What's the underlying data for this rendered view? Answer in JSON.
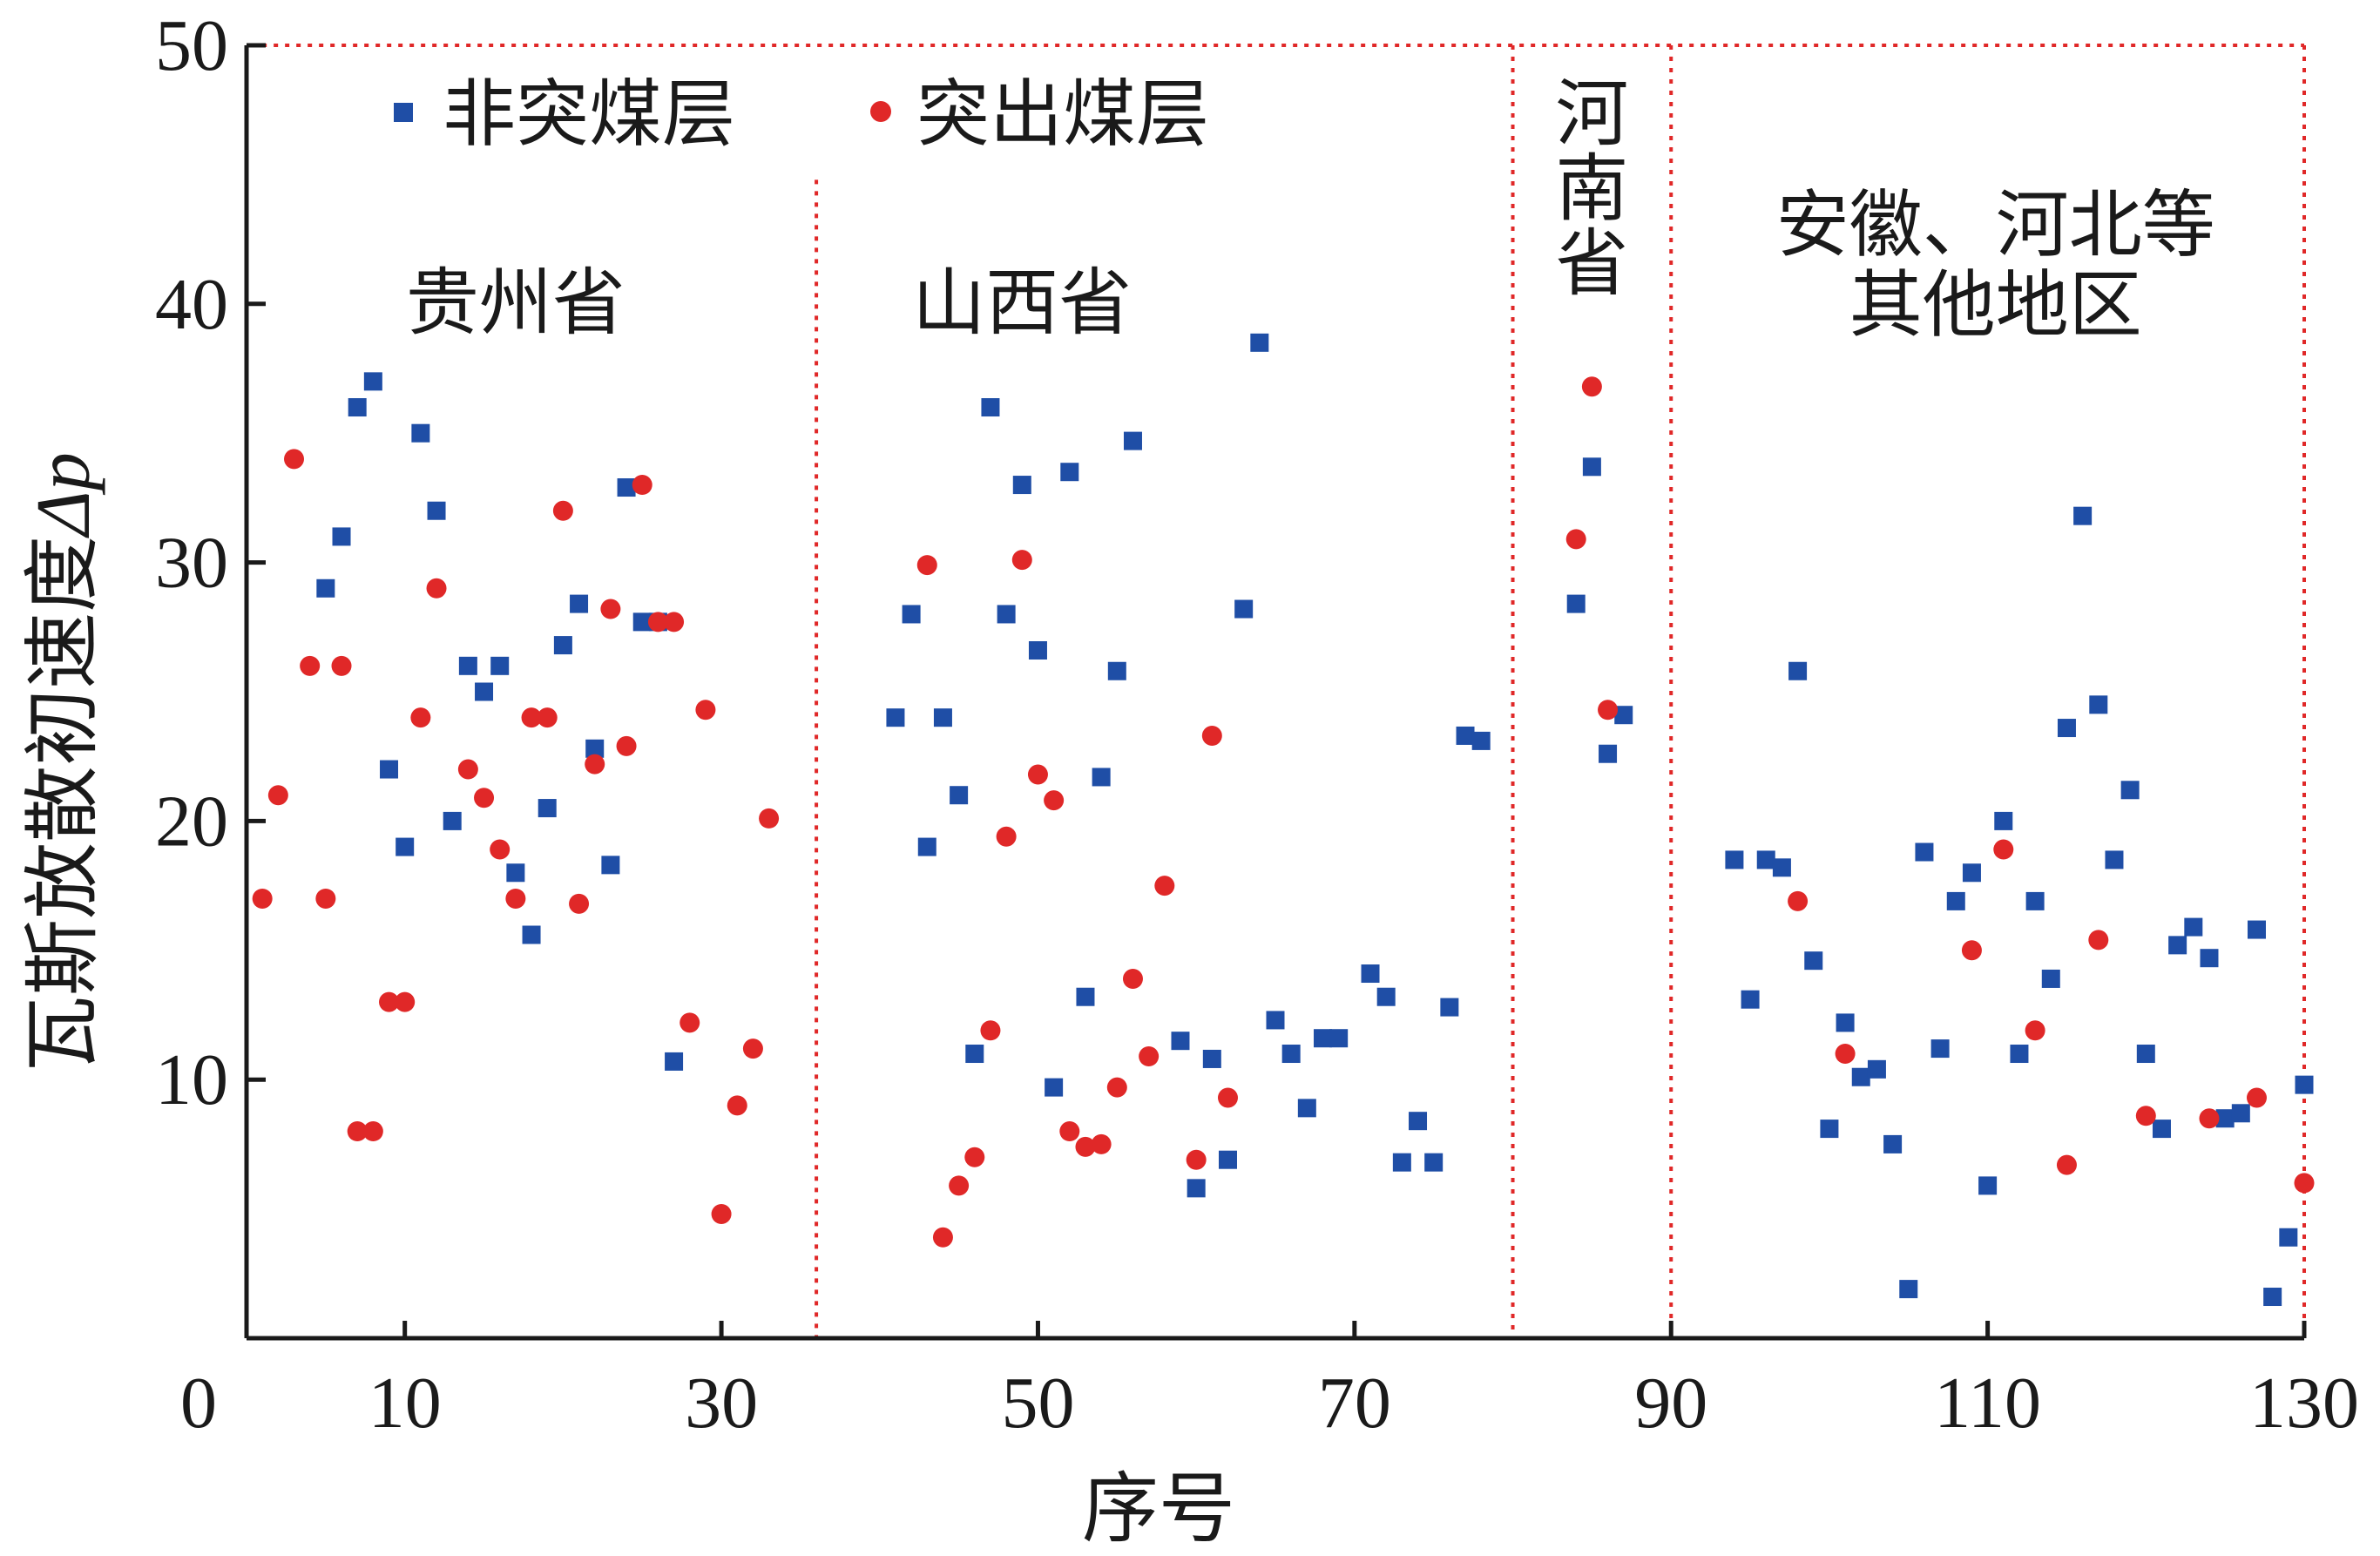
{
  "chart_data": {
    "type": "scatter",
    "xlabel": "序号",
    "ylabel_main": "瓦斯放散初速度",
    "ylabel_symbol": "Δp",
    "xlim": [
      0,
      130
    ],
    "ylim": [
      0,
      50
    ],
    "x_ticks": [
      0,
      10,
      30,
      50,
      70,
      90,
      110,
      130
    ],
    "y_ticks": [
      10,
      20,
      30,
      40,
      50
    ],
    "grid": false,
    "legend": {
      "placement": "top-left",
      "entries": [
        "非突煤层",
        "突出煤层"
      ]
    },
    "region_dividers_x": [
      36,
      80,
      90,
      130
    ],
    "regions": [
      {
        "lines": [
          "贵州省"
        ],
        "x_center": 17,
        "y_top": 41.5
      },
      {
        "lines": [
          "山西省"
        ],
        "x_center": 49,
        "y_top": 41.5
      },
      {
        "lines": [
          "河",
          "南",
          "省"
        ],
        "x_center": 85,
        "y_top": 48.8
      },
      {
        "lines": [
          "安徽、河北等",
          "其他地区"
        ],
        "x_center": 110.5,
        "y_top": 44.5
      }
    ],
    "series": [
      {
        "name": "非突煤层",
        "marker": "square",
        "color": "#1f4ea6",
        "points": [
          [
            5,
            29
          ],
          [
            6,
            31
          ],
          [
            7,
            36
          ],
          [
            8,
            37
          ],
          [
            9,
            22
          ],
          [
            10,
            19
          ],
          [
            11,
            35
          ],
          [
            12,
            32
          ],
          [
            13,
            20
          ],
          [
            14,
            26
          ],
          [
            15,
            25
          ],
          [
            16,
            26
          ],
          [
            17,
            18
          ],
          [
            18,
            15.6
          ],
          [
            19,
            20.5
          ],
          [
            20,
            26.8
          ],
          [
            21,
            28.4
          ],
          [
            22,
            22.8
          ],
          [
            23,
            18.3
          ],
          [
            24,
            32.9
          ],
          [
            25,
            27.7
          ],
          [
            26,
            27.7
          ],
          [
            27,
            10.7
          ],
          [
            41,
            24
          ],
          [
            42,
            28
          ],
          [
            43,
            19
          ],
          [
            44,
            24
          ],
          [
            45,
            21
          ],
          [
            46,
            11
          ],
          [
            47,
            36
          ],
          [
            48,
            28
          ],
          [
            49,
            33
          ],
          [
            50,
            26.6
          ],
          [
            51,
            9.7
          ],
          [
            52,
            33.5
          ],
          [
            53,
            13.2
          ],
          [
            54,
            21.7
          ],
          [
            55,
            25.8
          ],
          [
            56,
            34.7
          ],
          [
            59,
            11.5
          ],
          [
            60,
            5.8
          ],
          [
            61,
            10.8
          ],
          [
            62,
            6.9
          ],
          [
            63,
            28.2
          ],
          [
            64,
            38.5
          ],
          [
            65,
            12.3
          ],
          [
            66,
            11
          ],
          [
            67,
            8.9
          ],
          [
            68,
            11.6
          ],
          [
            69,
            11.6
          ],
          [
            71,
            14.1
          ],
          [
            72,
            13.2
          ],
          [
            73,
            6.8
          ],
          [
            74,
            8.4
          ],
          [
            75,
            6.8
          ],
          [
            76,
            12.8
          ],
          [
            77,
            23.3
          ],
          [
            78,
            23.1
          ],
          [
            84,
            28.4
          ],
          [
            85,
            33.7
          ],
          [
            86,
            22.6
          ],
          [
            87,
            24.1
          ],
          [
            94,
            18.5
          ],
          [
            95,
            13.1
          ],
          [
            96,
            18.5
          ],
          [
            97,
            18.2
          ],
          [
            98,
            25.8
          ],
          [
            99,
            14.6
          ],
          [
            100,
            8.1
          ],
          [
            101,
            12.2
          ],
          [
            102,
            10.1
          ],
          [
            103,
            10.4
          ],
          [
            104,
            7.5
          ],
          [
            105,
            1.9
          ],
          [
            106,
            18.8
          ],
          [
            107,
            11.2
          ],
          [
            108,
            16.9
          ],
          [
            109,
            18
          ],
          [
            110,
            5.9
          ],
          [
            111,
            20
          ],
          [
            112,
            11
          ],
          [
            113,
            16.9
          ],
          [
            114,
            13.9
          ],
          [
            115,
            23.6
          ],
          [
            116,
            31.8
          ],
          [
            117,
            24.5
          ],
          [
            118,
            18.5
          ],
          [
            119,
            21.2
          ],
          [
            120,
            11
          ],
          [
            121,
            8.1
          ],
          [
            122,
            15.2
          ],
          [
            123,
            15.9
          ],
          [
            124,
            14.7
          ],
          [
            125,
            8.5
          ],
          [
            126,
            8.7
          ],
          [
            127,
            15.8
          ],
          [
            128,
            1.6
          ],
          [
            129,
            3.9
          ],
          [
            130,
            9.8
          ]
        ]
      },
      {
        "name": "突出煤层",
        "marker": "circle",
        "color": "#e02828",
        "points": [
          [
            1,
            17
          ],
          [
            2,
            21
          ],
          [
            3,
            34
          ],
          [
            4,
            26
          ],
          [
            5,
            17
          ],
          [
            6,
            26
          ],
          [
            7,
            8
          ],
          [
            8,
            8
          ],
          [
            9,
            13
          ],
          [
            10,
            13
          ],
          [
            11,
            24
          ],
          [
            12,
            29
          ],
          [
            14,
            22
          ],
          [
            15,
            20.9
          ],
          [
            16,
            18.9
          ],
          [
            17,
            17
          ],
          [
            18,
            24
          ],
          [
            19,
            24
          ],
          [
            20,
            32
          ],
          [
            21,
            16.8
          ],
          [
            22,
            22.2
          ],
          [
            23,
            28.2
          ],
          [
            24,
            22.9
          ],
          [
            25,
            33
          ],
          [
            26,
            27.7
          ],
          [
            27,
            27.7
          ],
          [
            28,
            12.2
          ],
          [
            29,
            24.3
          ],
          [
            30,
            4.8
          ],
          [
            31,
            9
          ],
          [
            32,
            11.2
          ],
          [
            33,
            20.1
          ],
          [
            43,
            29.9
          ],
          [
            44,
            3.9
          ],
          [
            45,
            5.9
          ],
          [
            46,
            7
          ],
          [
            47,
            11.9
          ],
          [
            48,
            19.4
          ],
          [
            49,
            30.1
          ],
          [
            50,
            21.8
          ],
          [
            51,
            20.8
          ],
          [
            52,
            8
          ],
          [
            53,
            7.4
          ],
          [
            54,
            7.5
          ],
          [
            55,
            9.7
          ],
          [
            56,
            13.9
          ],
          [
            57,
            10.9
          ],
          [
            58,
            17.5
          ],
          [
            60,
            6.9
          ],
          [
            61,
            23.3
          ],
          [
            62,
            9.3
          ],
          [
            84,
            30.9
          ],
          [
            85,
            36.8
          ],
          [
            86,
            24.3
          ],
          [
            98,
            16.9
          ],
          [
            101,
            11
          ],
          [
            109,
            15
          ],
          [
            111,
            18.9
          ],
          [
            113,
            11.9
          ],
          [
            115,
            6.7
          ],
          [
            117,
            15.4
          ],
          [
            120,
            8.6
          ],
          [
            124,
            8.5
          ],
          [
            127,
            9.3
          ],
          [
            130,
            6
          ]
        ]
      }
    ]
  }
}
